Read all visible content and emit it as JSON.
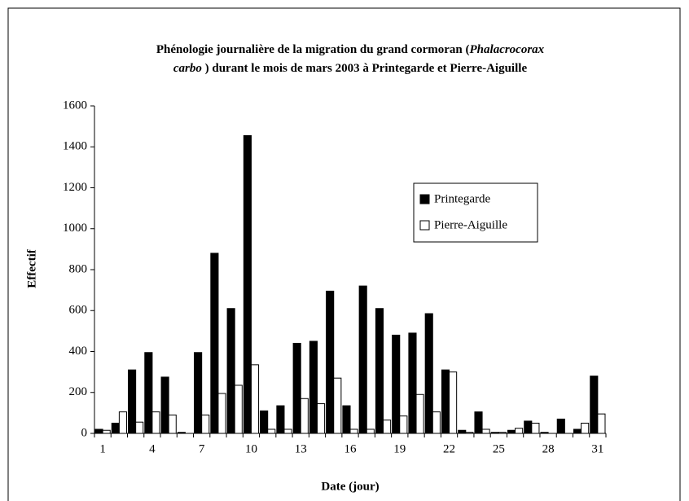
{
  "chart_data": {
    "type": "bar",
    "title_lines": [
      [
        {
          "text": "Phénologie journalière de la migration du grand cormoran (",
          "italic": false
        },
        {
          "text": "Phalacrocorax",
          "italic": true
        }
      ],
      [
        {
          "text": "carbo",
          "italic": true
        },
        {
          "text": " ) durant le mois de mars 2003 à Printegarde et Pierre-Aiguille",
          "italic": false
        }
      ]
    ],
    "xlabel": "Date (jour)",
    "ylabel": "Effectif",
    "categories": [
      "1",
      null,
      null,
      "4",
      null,
      null,
      "7",
      null,
      null,
      "10",
      null,
      null,
      "13",
      null,
      null,
      "16",
      null,
      null,
      "19",
      null,
      null,
      "22",
      null,
      null,
      "25",
      null,
      null,
      "28",
      null,
      null,
      "31"
    ],
    "series": [
      {
        "name": "Printegarde",
        "color": "#000000",
        "values": [
          20,
          50,
          310,
          395,
          275,
          5,
          395,
          880,
          610,
          1455,
          110,
          135,
          440,
          450,
          695,
          135,
          720,
          610,
          480,
          490,
          585,
          310,
          15,
          105,
          5,
          15,
          60,
          5,
          70,
          20,
          280
        ]
      },
      {
        "name": "Pierre-Aiguille",
        "color": "#ffffff",
        "values": [
          15,
          105,
          55,
          105,
          90,
          0,
          90,
          195,
          235,
          335,
          20,
          20,
          170,
          145,
          270,
          20,
          20,
          65,
          85,
          190,
          105,
          300,
          5,
          20,
          5,
          25,
          50,
          0,
          0,
          50,
          95
        ]
      }
    ],
    "ylim": [
      0,
      1600
    ],
    "yticks": [
      0,
      200,
      400,
      600,
      800,
      1000,
      1200,
      1400,
      1600
    ],
    "grid": false,
    "legend": "right"
  }
}
